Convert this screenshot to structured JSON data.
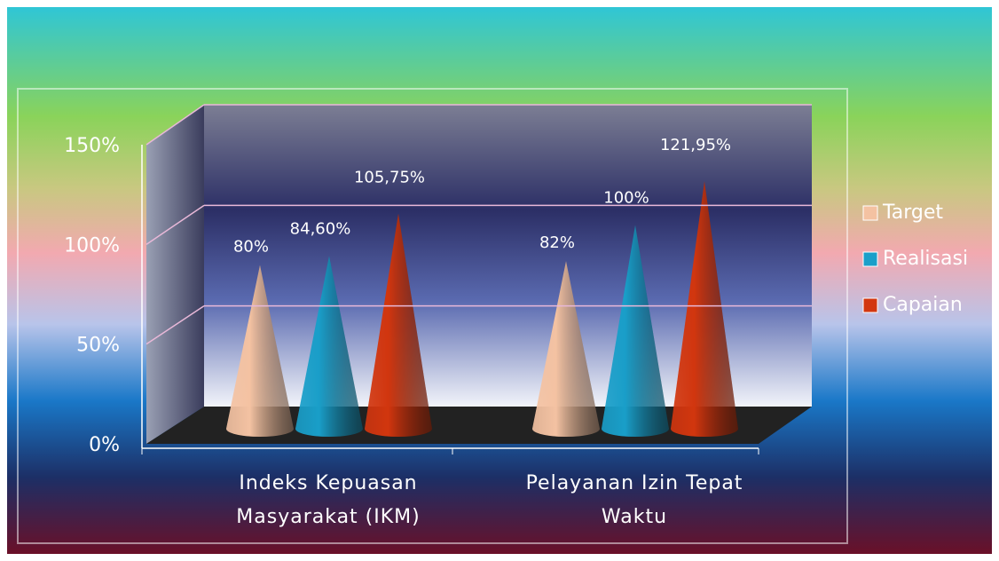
{
  "chart_data": {
    "type": "cone3d",
    "categories": [
      "Indeks Kepuasan Masyarakat (IKM)",
      "Pelayanan Izin Tepat Waktu"
    ],
    "series": [
      {
        "name": "Target",
        "color": "#f4c2a2",
        "values": [
          80,
          82
        ],
        "value_labels": [
          "80%",
          "82%"
        ]
      },
      {
        "name": "Realisasi",
        "color": "#1a9fc9",
        "values": [
          84.6,
          100
        ],
        "value_labels": [
          "84,60%",
          "100%"
        ]
      },
      {
        "name": "Capaian",
        "color": "#d2360f",
        "values": [
          105.75,
          121.95
        ],
        "value_labels": [
          "105,75%",
          "121,95%"
        ]
      }
    ],
    "ylim": [
      0,
      150
    ],
    "yticks": [
      {
        "value": 0,
        "label": "0%"
      },
      {
        "value": 50,
        "label": "50%"
      },
      {
        "value": 100,
        "label": "100%"
      },
      {
        "value": 150,
        "label": "150%"
      }
    ],
    "grid": true,
    "legend": "right"
  }
}
